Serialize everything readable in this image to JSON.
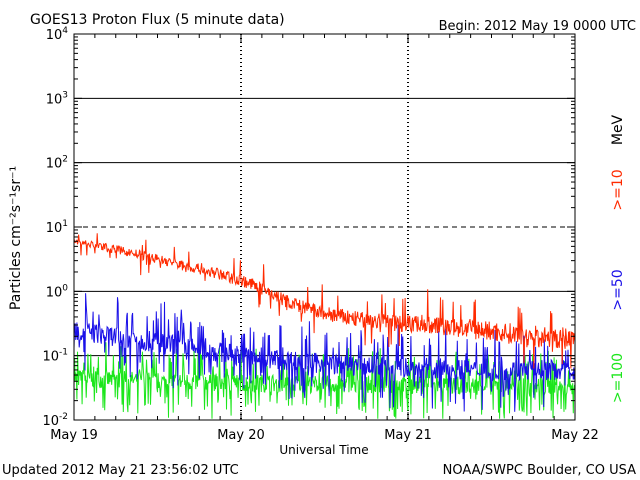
{
  "header": {
    "title": "GOES13 Proton Flux (5 minute data)",
    "begin": "Begin: 2012 May 19 0000 UTC"
  },
  "footer": {
    "updated": "Updated 2012 May 21 23:56:02 UTC",
    "credit": "NOAA/SWPC Boulder, CO USA"
  },
  "chart_data": {
    "type": "line",
    "title": "GOES13 Proton Flux (5 minute data)",
    "xlabel": "Universal Time",
    "ylabel": "Particles cm⁻²s⁻¹sr⁻¹",
    "y_scale": "log",
    "ylim": [
      0.01,
      10000
    ],
    "xlim": [
      "2012-05-19 00:00",
      "2012-05-22 00:00"
    ],
    "x_ticks": [
      "May 19",
      "May 20",
      "May 21",
      "May 22"
    ],
    "y_ticks": [
      {
        "base": "10",
        "exp": "-2"
      },
      {
        "base": "10",
        "exp": "-1"
      },
      {
        "base": "10",
        "exp": "0"
      },
      {
        "base": "10",
        "exp": "1"
      },
      {
        "base": "10",
        "exp": "2"
      },
      {
        "base": "10",
        "exp": "3"
      },
      {
        "base": "10",
        "exp": "4"
      }
    ],
    "threshold_lines": [
      0.1,
      1,
      100,
      1000
    ],
    "dashed_lines": [
      10
    ],
    "legend": {
      "unit": "MeV",
      "placement": "right"
    },
    "series": [
      {
        "name": ">=10",
        "color": "#ff2a00",
        "x": [
          "2012-05-19 00:00",
          "2012-05-19 06:00",
          "2012-05-19 12:00",
          "2012-05-19 18:00",
          "2012-05-20 00:00",
          "2012-05-20 03:00",
          "2012-05-20 06:00",
          "2012-05-20 09:00",
          "2012-05-20 12:00",
          "2012-05-20 18:00",
          "2012-05-21 00:00",
          "2012-05-21 06:00",
          "2012-05-21 12:00",
          "2012-05-21 18:00",
          "2012-05-22 00:00"
        ],
        "values": [
          6.0,
          4.5,
          3.2,
          2.2,
          1.5,
          1.1,
          0.75,
          0.55,
          0.45,
          0.35,
          0.32,
          0.28,
          0.24,
          0.2,
          0.18
        ]
      },
      {
        "name": ">=50",
        "color": "#1a10e8",
        "x": [
          "2012-05-19 00:00",
          "2012-05-19 12:00",
          "2012-05-20 00:00",
          "2012-05-20 12:00",
          "2012-05-21 00:00",
          "2012-05-21 12:00",
          "2012-05-22 00:00"
        ],
        "values": [
          0.25,
          0.16,
          0.1,
          0.075,
          0.065,
          0.06,
          0.06
        ]
      },
      {
        "name": ">=100",
        "color": "#1ce61c",
        "x": [
          "2012-05-19 00:00",
          "2012-05-19 12:00",
          "2012-05-20 00:00",
          "2012-05-20 12:00",
          "2012-05-21 00:00",
          "2012-05-21 12:00",
          "2012-05-22 00:00"
        ],
        "values": [
          0.045,
          0.04,
          0.038,
          0.036,
          0.035,
          0.034,
          0.033
        ]
      }
    ]
  }
}
